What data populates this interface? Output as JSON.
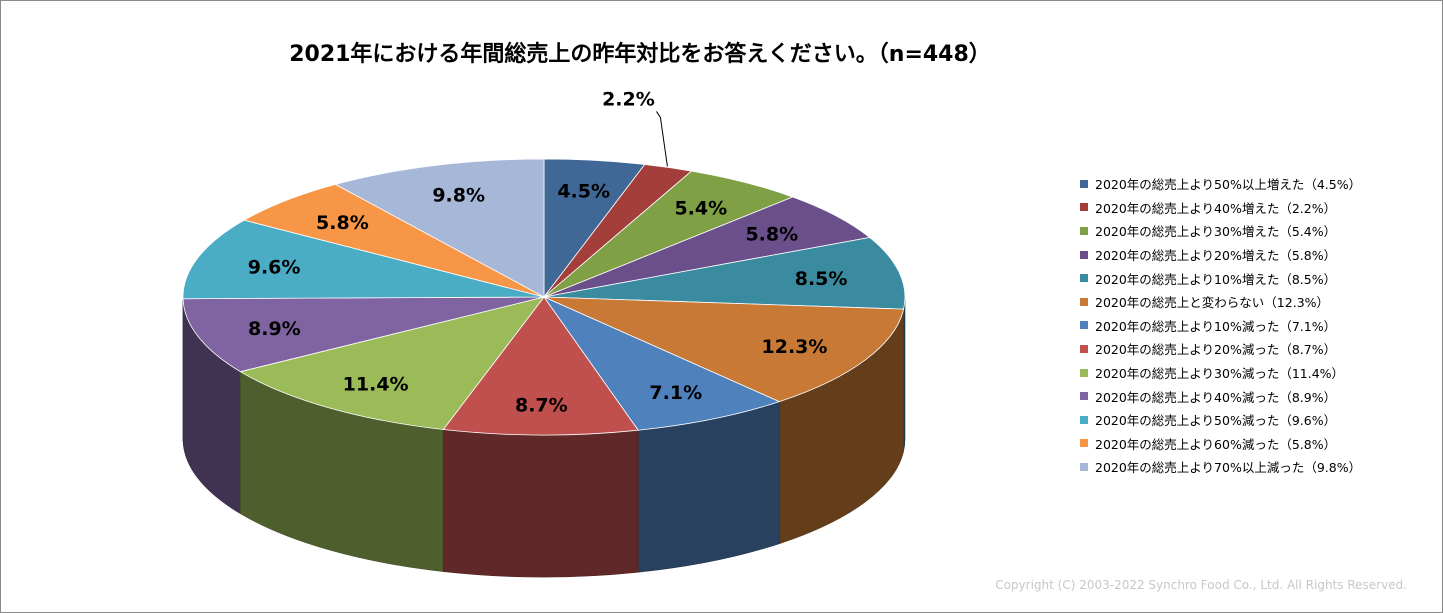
{
  "chart_data": {
    "type": "pie",
    "title": "2021年における年間総売上の昨年対比をお答えください。（n=448）",
    "legend_position": "right",
    "slices": [
      {
        "label": "2020年の総売上より50%以上増えた（4.5%）",
        "value": 4.5,
        "data_label": "4.5%",
        "color": "#3f6896"
      },
      {
        "label": "2020年の総売上より40%増えた（2.2%）",
        "value": 2.2,
        "data_label": "2.2%",
        "color": "#a33e3b"
      },
      {
        "label": "2020年の総売上より30%増えた（5.4%）",
        "value": 5.4,
        "data_label": "5.4%",
        "color": "#80a046"
      },
      {
        "label": "2020年の総売上より20%増えた（5.8%）",
        "value": 5.8,
        "data_label": "5.8%",
        "color": "#6a4f8b"
      },
      {
        "label": "2020年の総売上より10%増えた（8.5%）",
        "value": 8.5,
        "data_label": "8.5%",
        "color": "#3a8ba0"
      },
      {
        "label": "2020年の総売上と変わらない（12.3%）",
        "value": 12.3,
        "data_label": "12.3%",
        "color": "#c87935"
      },
      {
        "label": "2020年の総売上より10%減った（7.1%）",
        "value": 7.1,
        "data_label": "7.1%",
        "color": "#4f81bd"
      },
      {
        "label": "2020年の総売上より20%減った（8.7%）",
        "value": 8.7,
        "data_label": "8.7%",
        "color": "#c0504d"
      },
      {
        "label": "2020年の総売上より30%減った（11.4%）",
        "value": 11.4,
        "data_label": "11.4%",
        "color": "#9bbb59"
      },
      {
        "label": "2020年の総売上より40%減った（8.9%）",
        "value": 8.9,
        "data_label": "8.9%",
        "color": "#8064a2"
      },
      {
        "label": "2020年の総売上より50%減った（9.6%）",
        "value": 9.6,
        "data_label": "9.6%",
        "color": "#4bacc6"
      },
      {
        "label": "2020年の総売上より60%減った（5.8%）",
        "value": 5.8,
        "data_label": "5.8%",
        "color": "#f79646"
      },
      {
        "label": "2020年の総売上より70%以上減った（9.8%）",
        "value": 9.8,
        "data_label": "9.8%",
        "color": "#a7b7d8"
      }
    ]
  },
  "copyright": "Copyright (C) 2003-2022   Synchro Food Co., Ltd. All Rights Reserved."
}
